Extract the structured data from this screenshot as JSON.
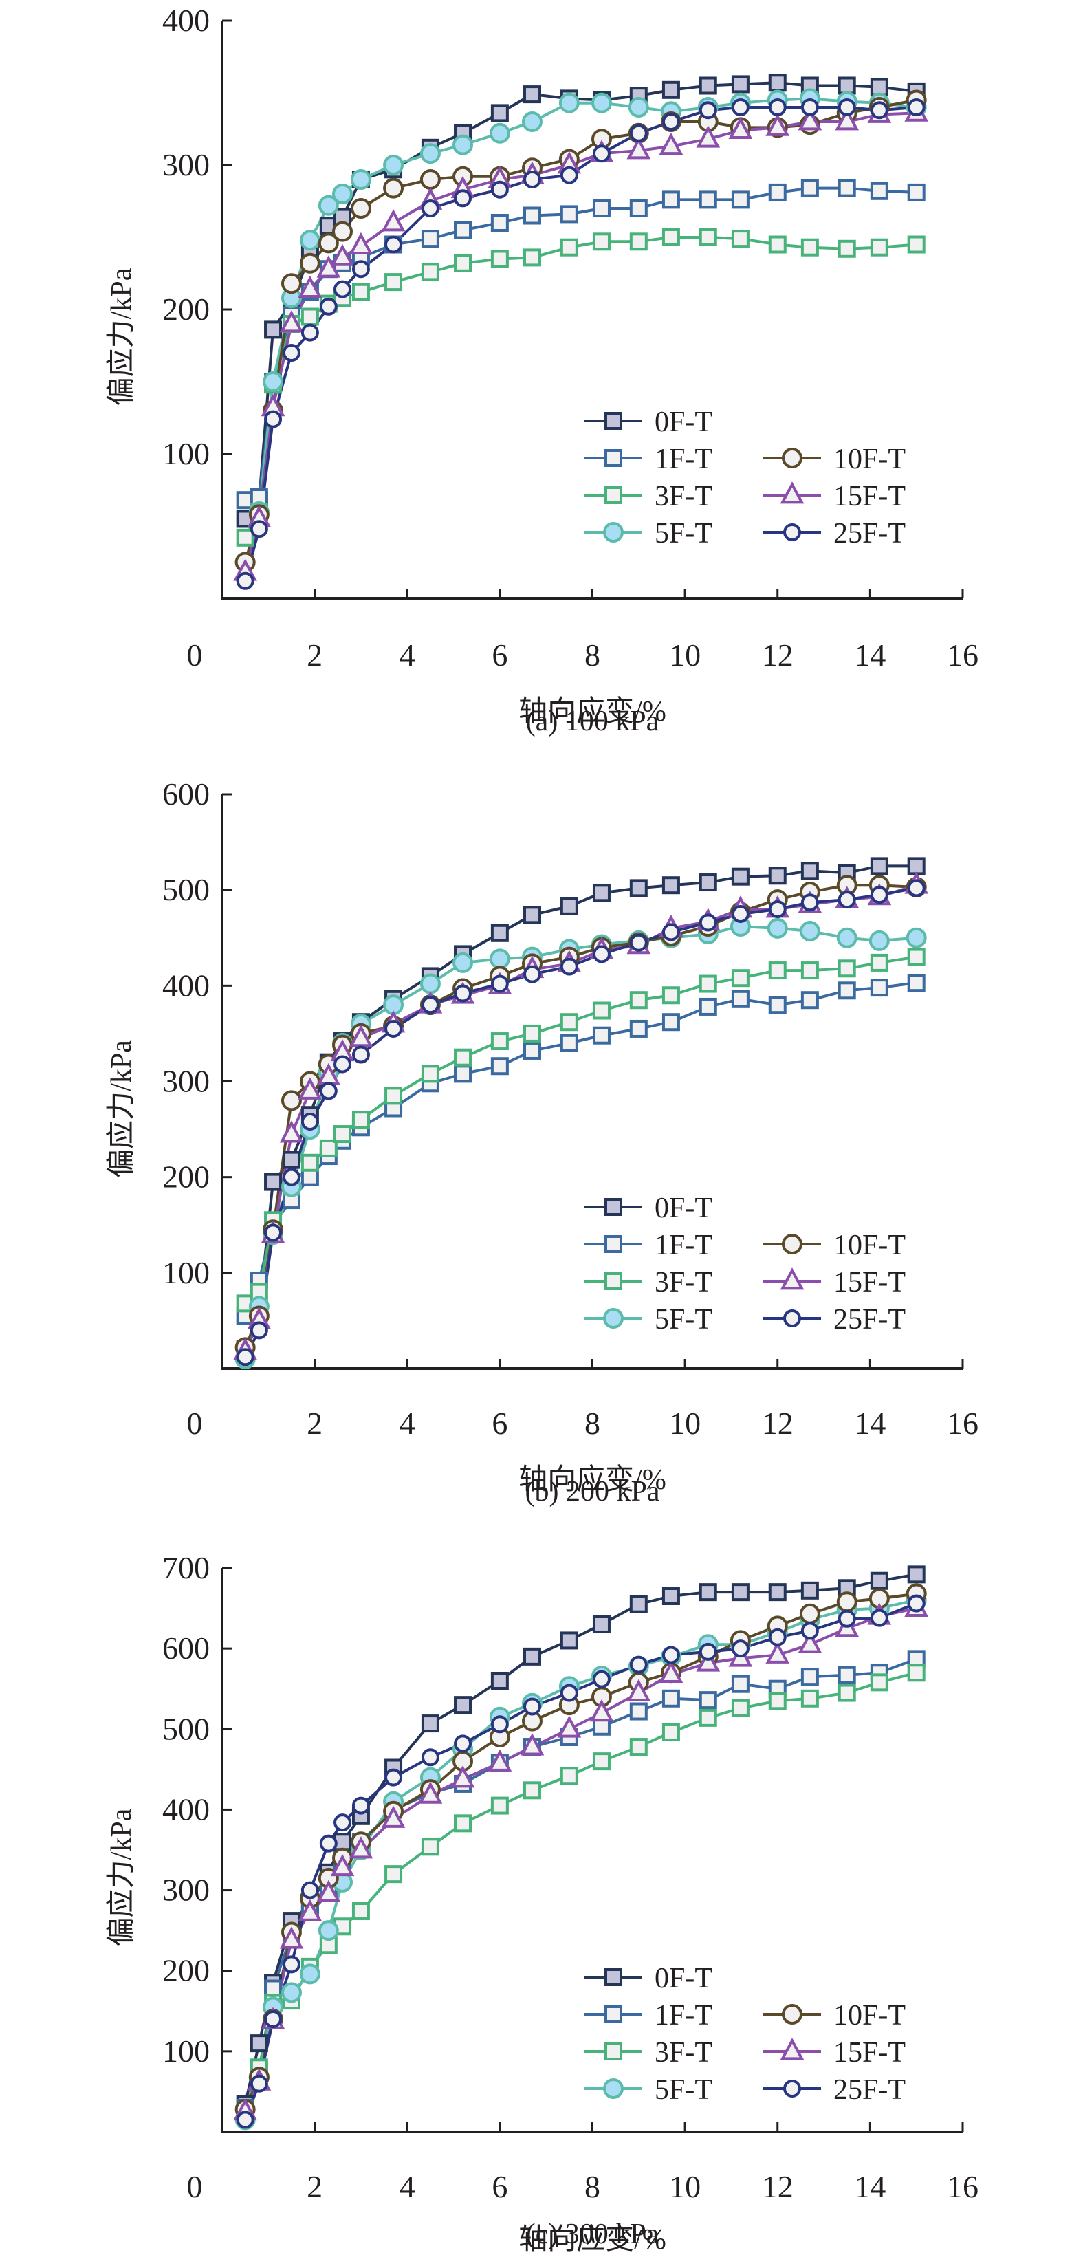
{
  "chart_data": [
    {
      "type": "line",
      "id": "a",
      "caption": "(a) 100 kPa",
      "xlabel": "轴向应变/%",
      "ylabel": "偏应力/kPa",
      "xlim": [
        0,
        16
      ],
      "ylim": [
        0,
        400
      ],
      "xticks": [
        "0",
        "2",
        "4",
        "6",
        "8",
        "10",
        "12",
        "14",
        "16"
      ],
      "yticks": [
        "100",
        "200",
        "300",
        "400"
      ],
      "grid": false,
      "legend_position": "lower-right",
      "x": [
        0.5,
        0.8,
        1.1,
        1.5,
        1.9,
        2.3,
        2.6,
        3.0,
        3.7,
        4.5,
        5.2,
        6.0,
        6.7,
        7.5,
        8.2,
        9.0,
        9.7,
        10.5,
        11.2,
        12.0,
        12.7,
        13.5,
        14.2,
        15.0
      ],
      "series": [
        {
          "name": "0F-T",
          "values": [
            55,
            68,
            186,
            205,
            238,
            258,
            264,
            290,
            297,
            312,
            322,
            336,
            349,
            346,
            345,
            348,
            352,
            355,
            356,
            357,
            355,
            355,
            354,
            351
          ]
        },
        {
          "name": "1F-T",
          "values": [
            68,
            70,
            150,
            196,
            212,
            228,
            232,
            236,
            245,
            249,
            255,
            260,
            265,
            266,
            270,
            270,
            276,
            276,
            276,
            281,
            284,
            284,
            282,
            281
          ]
        },
        {
          "name": "3F-T",
          "values": [
            42,
            60,
            148,
            190,
            195,
            204,
            208,
            212,
            219,
            226,
            232,
            235,
            236,
            243,
            247,
            247,
            250,
            250,
            249,
            245,
            243,
            242,
            243,
            245
          ]
        },
        {
          "name": "5F-T",
          "values": [
            25,
            60,
            150,
            208,
            248,
            272,
            280,
            290,
            300,
            308,
            314,
            322,
            330,
            343,
            343,
            340,
            337,
            340,
            343,
            345,
            346,
            344,
            343,
            340
          ]
        },
        {
          "name": "10F-T",
          "values": [
            25,
            58,
            130,
            218,
            232,
            246,
            254,
            270,
            284,
            290,
            292,
            292,
            298,
            304,
            318,
            322,
            330,
            330,
            326,
            326,
            328,
            336,
            340,
            345
          ]
        },
        {
          "name": "15F-T",
          "values": [
            18,
            55,
            132,
            190,
            214,
            228,
            236,
            244,
            260,
            275,
            283,
            290,
            293,
            300,
            308,
            310,
            313,
            318,
            324,
            326,
            330,
            330,
            335,
            336
          ]
        },
        {
          "name": "25F-T",
          "values": [
            12,
            48,
            124,
            170,
            184,
            202,
            214,
            228,
            245,
            270,
            277,
            283,
            290,
            293,
            308,
            322,
            330,
            338,
            340,
            340,
            340,
            340,
            338,
            340
          ]
        }
      ]
    },
    {
      "type": "line",
      "id": "b",
      "caption": "(b) 200 kPa",
      "xlabel": "轴向应变/%",
      "ylabel": "偏应力/kPa",
      "xlim": [
        0,
        16
      ],
      "ylim": [
        0,
        600
      ],
      "xticks": [
        "0",
        "2",
        "4",
        "6",
        "8",
        "10",
        "12",
        "14",
        "16"
      ],
      "yticks": [
        "100",
        "200",
        "300",
        "400",
        "500",
        "600"
      ],
      "grid": false,
      "legend_position": "lower-right",
      "x": [
        0.5,
        0.8,
        1.1,
        1.5,
        1.9,
        2.3,
        2.6,
        3.0,
        3.7,
        4.5,
        5.2,
        6.0,
        6.7,
        7.5,
        8.2,
        9.0,
        9.7,
        10.5,
        11.2,
        12.0,
        12.7,
        13.5,
        14.2,
        15.0
      ],
      "series": [
        {
          "name": "0F-T",
          "values": [
            20,
            60,
            195,
            218,
            265,
            320,
            342,
            362,
            386,
            410,
            433,
            455,
            474,
            483,
            497,
            502,
            505,
            508,
            514,
            515,
            520,
            518,
            525,
            525
          ]
        },
        {
          "name": "1F-T",
          "values": [
            55,
            92,
            150,
            176,
            200,
            222,
            238,
            252,
            272,
            298,
            308,
            316,
            332,
            340,
            348,
            355,
            362,
            378,
            386,
            380,
            385,
            395,
            398,
            403
          ]
        },
        {
          "name": "3F-T",
          "values": [
            68,
            80,
            155,
            190,
            215,
            230,
            245,
            260,
            285,
            308,
            325,
            342,
            350,
            362,
            374,
            385,
            390,
            402,
            408,
            416,
            416,
            418,
            424,
            430
          ]
        },
        {
          "name": "5F-T",
          "values": [
            10,
            65,
            140,
            190,
            250,
            310,
            340,
            360,
            380,
            402,
            424,
            428,
            430,
            438,
            443,
            447,
            450,
            454,
            462,
            460,
            457,
            450,
            447,
            450
          ]
        },
        {
          "name": "10F-T",
          "values": [
            22,
            55,
            145,
            280,
            300,
            318,
            338,
            350,
            358,
            380,
            397,
            410,
            423,
            430,
            440,
            445,
            452,
            462,
            477,
            490,
            498,
            505,
            505,
            503
          ]
        },
        {
          "name": "15F-T",
          "values": [
            18,
            50,
            140,
            245,
            290,
            305,
            330,
            345,
            360,
            380,
            390,
            400,
            417,
            423,
            437,
            442,
            460,
            467,
            480,
            480,
            485,
            490,
            493,
            505
          ]
        },
        {
          "name": "25F-T",
          "values": [
            12,
            40,
            142,
            200,
            258,
            290,
            318,
            328,
            355,
            380,
            392,
            402,
            412,
            420,
            433,
            445,
            456,
            466,
            475,
            480,
            487,
            490,
            495,
            502
          ]
        }
      ]
    },
    {
      "type": "line",
      "id": "c",
      "caption": "(c) 300 kPa",
      "xlabel": "轴向应变/%",
      "ylabel": "偏应力/kPa",
      "xlim": [
        0,
        16
      ],
      "ylim": [
        0,
        700
      ],
      "xticks": [
        "0",
        "2",
        "4",
        "6",
        "8",
        "10",
        "12",
        "14",
        "16"
      ],
      "yticks": [
        "100",
        "200",
        "300",
        "400",
        "500",
        "600",
        "700"
      ],
      "grid": false,
      "legend_position": "lower-right",
      "x": [
        0.5,
        0.8,
        1.1,
        1.5,
        1.9,
        2.3,
        2.6,
        3.0,
        3.7,
        4.5,
        5.2,
        6.0,
        6.7,
        7.5,
        8.2,
        9.0,
        9.7,
        10.5,
        11.2,
        12.0,
        12.7,
        13.5,
        14.2,
        15.0
      ],
      "series": [
        {
          "name": "0F-T",
          "values": [
            35,
            110,
            185,
            262,
            282,
            322,
            360,
            392,
            452,
            507,
            530,
            560,
            590,
            610,
            630,
            655,
            665,
            670,
            670,
            670,
            672,
            675,
            684,
            692
          ]
        },
        {
          "name": "1F-T",
          "values": [
            30,
            75,
            178,
            245,
            275,
            300,
            338,
            360,
            400,
            420,
            432,
            458,
            478,
            490,
            503,
            522,
            538,
            536,
            556,
            550,
            565,
            567,
            570,
            587
          ]
        },
        {
          "name": "3F-T",
          "values": [
            25,
            80,
            160,
            163,
            205,
            232,
            255,
            274,
            320,
            354,
            383,
            405,
            424,
            442,
            460,
            478,
            496,
            514,
            526,
            535,
            538,
            545,
            558,
            570
          ]
        },
        {
          "name": "5F-T",
          "values": [
            15,
            68,
            155,
            173,
            196,
            250,
            310,
            350,
            410,
            440,
            475,
            515,
            532,
            553,
            566,
            578,
            590,
            605,
            605,
            620,
            636,
            648,
            650,
            660
          ]
        },
        {
          "name": "10F-T",
          "values": [
            28,
            68,
            140,
            248,
            290,
            315,
            340,
            360,
            398,
            425,
            460,
            490,
            510,
            530,
            540,
            558,
            570,
            590,
            610,
            628,
            643,
            658,
            662,
            668
          ]
        },
        {
          "name": "15F-T",
          "values": [
            25,
            62,
            138,
            238,
            272,
            296,
            328,
            350,
            388,
            418,
            438,
            458,
            478,
            500,
            520,
            545,
            568,
            582,
            588,
            592,
            605,
            625,
            640,
            650
          ]
        },
        {
          "name": "25F-T",
          "values": [
            15,
            60,
            140,
            208,
            300,
            358,
            384,
            405,
            440,
            465,
            482,
            506,
            528,
            545,
            562,
            580,
            592,
            596,
            600,
            614,
            622,
            637,
            638,
            656
          ]
        }
      ]
    }
  ],
  "series_styles": [
    {
      "name": "0F-T",
      "marker": "square",
      "stroke": "#243558",
      "fill": "#c3c4da"
    },
    {
      "name": "1F-T",
      "marker": "square",
      "stroke": "#3a6aa0",
      "fill": "#f1f1f1"
    },
    {
      "name": "3F-T",
      "marker": "square",
      "stroke": "#47b37a",
      "fill": "#f1f1f1"
    },
    {
      "name": "5F-T",
      "marker": "circle",
      "stroke": "#5cbcac",
      "fill": "#a9ddf3"
    },
    {
      "name": "10F-T",
      "marker": "circle",
      "stroke": "#5b4a2a",
      "fill": "#f1f1f1"
    },
    {
      "name": "15F-T",
      "marker": "triangle",
      "stroke": "#8b4fab",
      "fill": "#f1f1f1"
    },
    {
      "name": "25F-T",
      "marker": "circle-small",
      "stroke": "#283580",
      "fill": "#f1f1f1"
    }
  ]
}
